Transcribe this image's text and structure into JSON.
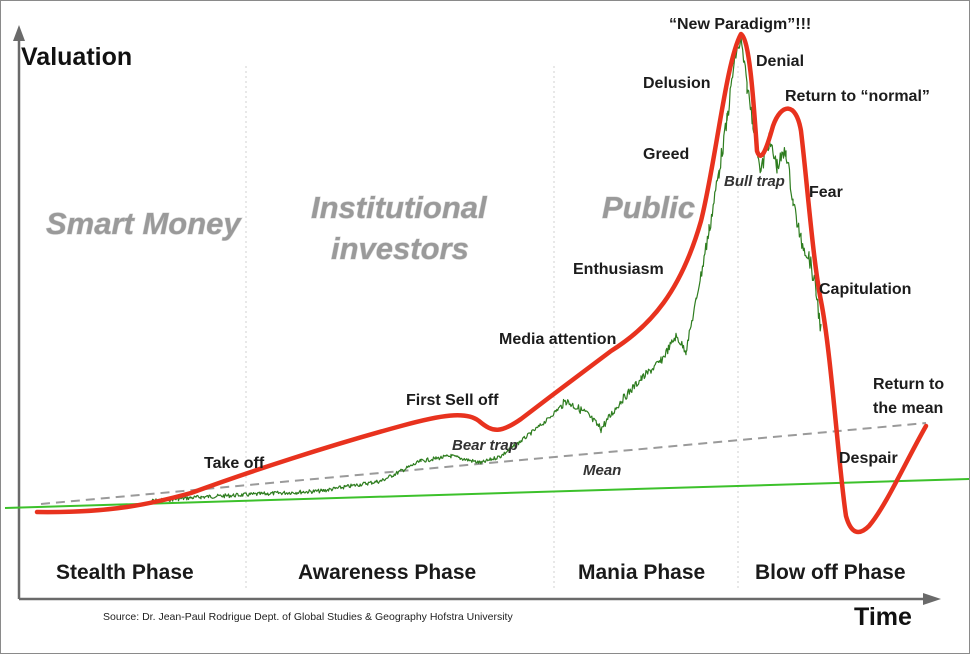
{
  "axes": {
    "y_label": "Valuation",
    "x_label": "Time"
  },
  "phases": [
    {
      "id": "stealth",
      "label": "Stealth Phase"
    },
    {
      "id": "awareness",
      "label": "Awareness Phase"
    },
    {
      "id": "mania",
      "label": "Mania Phase"
    },
    {
      "id": "blowoff",
      "label": "Blow off Phase"
    }
  ],
  "participants": {
    "smart_money": "Smart Money",
    "institutional_line1": "Institutional",
    "institutional_line2": "investors",
    "public": "Public"
  },
  "stages": {
    "take_off": "Take off",
    "first_sell_off": "First Sell off",
    "bear_trap": "Bear trap",
    "mean": "Mean",
    "media_attention": "Media attention",
    "enthusiasm": "Enthusiasm",
    "greed": "Greed",
    "delusion": "Delusion",
    "new_paradigm": "“New Paradigm”!!!",
    "denial": "Denial",
    "return_to_normal": "Return to “normal”",
    "bull_trap": "Bull trap",
    "fear": "Fear",
    "capitulation": "Capitulation",
    "despair": "Despair",
    "return_to_mean_line1": "Return to",
    "return_to_mean_line2": "the mean"
  },
  "source": "Source: Dr. Jean-Paul Rodrigue Dept. of Global Studies & Geography Hofstra University",
  "colors": {
    "bubble_curve": "#e8321e",
    "price_series": "#2e7d1f",
    "baseline": "#3cc12b",
    "mean_line": "#9a9a9a",
    "axis": "#6a6a6a"
  }
}
